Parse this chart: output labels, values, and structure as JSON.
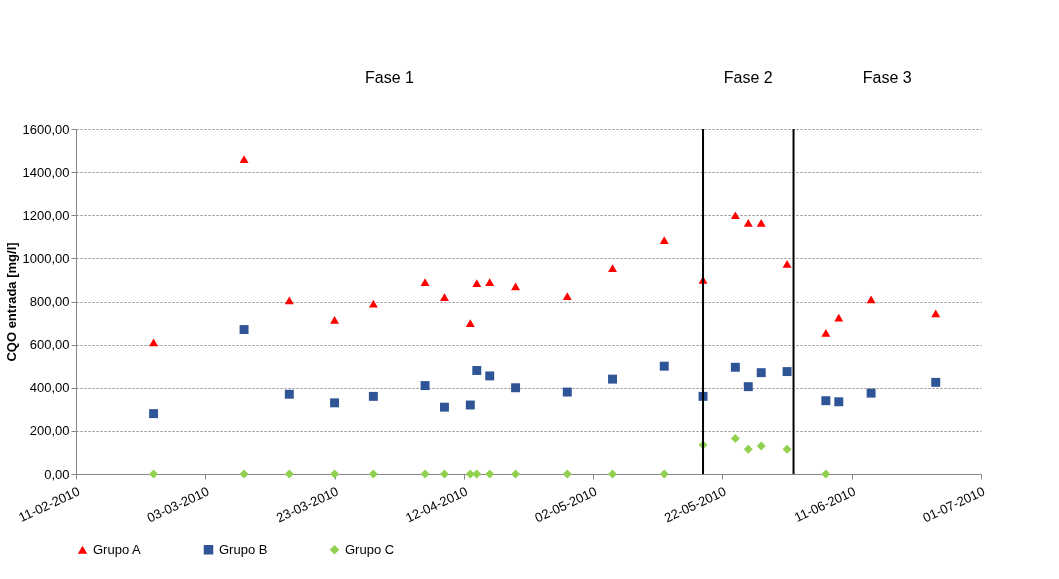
{
  "chart_data": {
    "type": "scatter",
    "ylabel": "CQO entrada [mg/l]",
    "x": [
      "2010-02-23",
      "2010-03-09",
      "2010-03-16",
      "2010-03-23",
      "2010-03-29",
      "2010-04-06",
      "2010-04-09",
      "2010-04-13",
      "2010-04-14",
      "2010-04-16",
      "2010-04-20",
      "2010-04-28",
      "2010-05-05",
      "2010-05-13",
      "2010-05-19",
      "2010-05-24",
      "2010-05-26",
      "2010-05-28",
      "2010-06-01",
      "2010-06-07",
      "2010-06-09",
      "2010-06-14",
      "2010-06-24"
    ],
    "series": [
      {
        "name": "Grupo A",
        "color": "#ff0000",
        "marker": "triangle",
        "values": [
          610,
          1460,
          805,
          715,
          790,
          890,
          820,
          700,
          885,
          890,
          870,
          825,
          955,
          1085,
          900,
          1200,
          1165,
          1165,
          975,
          655,
          725,
          810,
          745
        ]
      },
      {
        "name": "Grupo B",
        "color": "#2f5597",
        "marker": "square",
        "values": [
          280,
          670,
          370,
          330,
          360,
          410,
          310,
          320,
          480,
          455,
          400,
          380,
          440,
          500,
          360,
          495,
          405,
          470,
          475,
          340,
          335,
          375,
          425
        ]
      },
      {
        "name": "Grupo C",
        "color": "#92d050",
        "marker": "diamond",
        "values": [
          0,
          0,
          0,
          0,
          0,
          0,
          0,
          0,
          0,
          0,
          0,
          0,
          0,
          0,
          135,
          165,
          115,
          130,
          115,
          0,
          null,
          null,
          null
        ]
      }
    ],
    "xlim": [
      "2010-02-11",
      "2010-07-01"
    ],
    "xticks": [
      {
        "value": "2010-02-11",
        "label": "11-02-2010"
      },
      {
        "value": "2010-03-03",
        "label": "03-03-2010"
      },
      {
        "value": "2010-03-23",
        "label": "23-03-2010"
      },
      {
        "value": "2010-04-12",
        "label": "12-04-2010"
      },
      {
        "value": "2010-05-02",
        "label": "02-05-2010"
      },
      {
        "value": "2010-05-22",
        "label": "22-05-2010"
      },
      {
        "value": "2010-06-11",
        "label": "11-06-2010"
      },
      {
        "value": "2010-07-01",
        "label": "01-07-2010"
      }
    ],
    "ylim": [
      0,
      1600
    ],
    "yticks": [
      {
        "value": 0,
        "label": "0,00"
      },
      {
        "value": 200,
        "label": "200,00"
      },
      {
        "value": 400,
        "label": "400,00"
      },
      {
        "value": 600,
        "label": "600,00"
      },
      {
        "value": 800,
        "label": "800,00"
      },
      {
        "value": 1000,
        "label": "1000,00"
      },
      {
        "value": 1200,
        "label": "1200,00"
      },
      {
        "value": 1400,
        "label": "1400,00"
      },
      {
        "value": 1600,
        "label": "1600,00"
      }
    ],
    "ref_lines": [
      {
        "axis": "x",
        "value": "2010-05-19",
        "color": "#000000",
        "line_style": "solid"
      },
      {
        "axis": "x",
        "value": "2010-06-02",
        "color": "#000000",
        "line_style": "solid"
      }
    ],
    "annotations": [
      "Fase 1",
      "Fase 2",
      "Fase 3"
    ],
    "grid": "y",
    "legend": "bottom"
  }
}
